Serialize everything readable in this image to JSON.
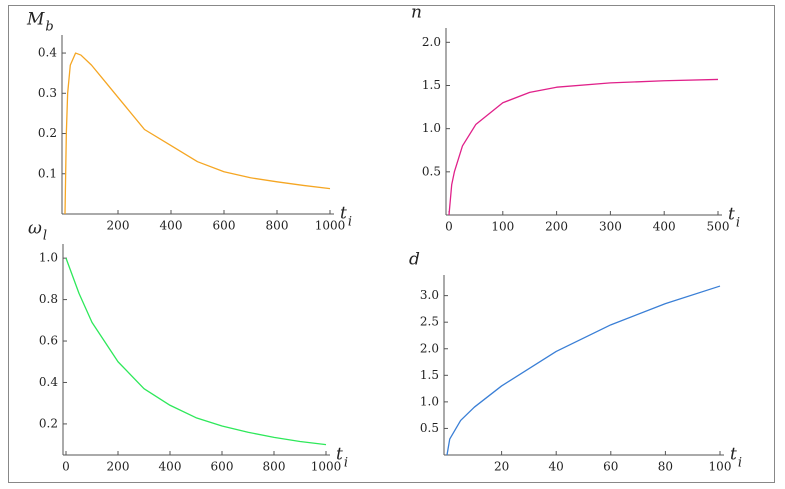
{
  "chart_data": [
    {
      "type": "line",
      "ylabel": "M",
      "ylabel_sub": "b",
      "xlabel": "t",
      "xlabel_sub": "i",
      "x": [
        0,
        5,
        10,
        20,
        40,
        60,
        100,
        150,
        200,
        300,
        400,
        500,
        600,
        700,
        800,
        900,
        1000
      ],
      "series": [
        {
          "color": "#f5a623",
          "values": [
            0,
            0.2,
            0.3,
            0.37,
            0.4,
            0.395,
            0.37,
            0.33,
            0.29,
            0.21,
            0.17,
            0.13,
            0.105,
            0.09,
            0.08,
            0.071,
            0.063
          ]
        }
      ],
      "xlim": [
        0,
        1000
      ],
      "xticks": [
        200,
        400,
        600,
        800,
        1000
      ],
      "ylim": [
        0,
        0.42
      ],
      "yticks": [
        0.1,
        0.2,
        0.3,
        0.4
      ]
    },
    {
      "type": "line",
      "ylabel": "n",
      "xlabel": "t",
      "xlabel_sub": "i",
      "x": [
        0,
        5,
        10,
        25,
        50,
        100,
        150,
        200,
        300,
        400,
        500
      ],
      "series": [
        {
          "color": "#e0218a",
          "values": [
            0,
            0.35,
            0.5,
            0.8,
            1.05,
            1.3,
            1.42,
            1.48,
            1.53,
            1.555,
            1.57
          ]
        }
      ],
      "xlim": [
        0,
        500
      ],
      "xticks": [
        0,
        100,
        200,
        300,
        400,
        500
      ],
      "ylim": [
        0,
        2.05
      ],
      "yticks": [
        0.5,
        {
          "value": 1,
          "label": "1.0"
        },
        1.5,
        {
          "value": 2,
          "label": "2.0"
        }
      ]
    },
    {
      "type": "line",
      "ylabel": "ω",
      "ylabel_sub": "l",
      "xlabel": "t",
      "xlabel_sub": "i",
      "x": [
        0,
        50,
        100,
        200,
        300,
        400,
        500,
        600,
        700,
        800,
        900,
        1000
      ],
      "series": [
        {
          "color": "#2ee85a",
          "values": [
            1.0,
            0.83,
            0.69,
            0.5,
            0.37,
            0.29,
            0.23,
            0.19,
            0.16,
            0.135,
            0.115,
            0.1
          ]
        }
      ],
      "xlim": [
        0,
        1000
      ],
      "xticks": [
        0,
        200,
        400,
        600,
        800,
        1000
      ],
      "ylim": [
        0.05,
        1.02
      ],
      "yticks": [
        0.2,
        0.4,
        0.6,
        0.8,
        {
          "value": 1,
          "label": "1.0"
        }
      ]
    },
    {
      "type": "line",
      "ylabel": "d",
      "xlabel": "t",
      "xlabel_sub": "i",
      "x": [
        0,
        1,
        5,
        10,
        20,
        40,
        60,
        80,
        100
      ],
      "series": [
        {
          "color": "#3a7fd6",
          "values": [
            0,
            0.3,
            0.65,
            0.9,
            1.3,
            1.95,
            2.45,
            2.85,
            3.18
          ]
        }
      ],
      "xlim": [
        0,
        100
      ],
      "xticks": [
        20,
        40,
        60,
        80,
        100
      ],
      "ylim": [
        0,
        3.2
      ],
      "yticks": [
        0.5,
        {
          "value": 1,
          "label": "1.0"
        },
        1.5,
        {
          "value": 2,
          "label": "2.0"
        },
        2.5,
        {
          "value": 3,
          "label": "3.0"
        }
      ]
    }
  ]
}
